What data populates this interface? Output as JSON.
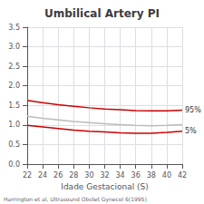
{
  "chart_data": {
    "type": "line",
    "title": "Umbilical Artery PI",
    "xlabel": "Idade Gestacional (S)",
    "caption": "Harrington et al, Ultrasound Obstet Gynecol 6(1995)",
    "x": [
      22,
      24,
      26,
      28,
      30,
      32,
      34,
      36,
      38,
      40,
      42
    ],
    "series": [
      {
        "color": "#cc0000",
        "values": [
          1.63,
          1.57,
          1.52,
          1.48,
          1.44,
          1.41,
          1.39,
          1.37,
          1.36,
          1.36,
          1.38
        ],
        "annotation": "95%"
      },
      {
        "color": "#bbbbbb",
        "values": [
          1.22,
          1.17,
          1.13,
          1.09,
          1.06,
          1.03,
          1.01,
          0.99,
          0.98,
          0.99,
          1.01
        ]
      },
      {
        "color": "#cc0000",
        "values": [
          0.99,
          0.95,
          0.91,
          0.87,
          0.84,
          0.82,
          0.8,
          0.79,
          0.79,
          0.81,
          0.84
        ],
        "annotation": "5%"
      }
    ],
    "xlim": [
      22,
      42
    ],
    "ylim": [
      0.0,
      3.5
    ],
    "xticks": [
      22,
      24,
      26,
      28,
      30,
      32,
      34,
      36,
      38,
      40,
      42
    ],
    "yticks": [
      {
        "value": 0,
        "label": "0.0"
      },
      0.5,
      {
        "value": 1,
        "label": "1.0"
      },
      1.5,
      {
        "value": 2,
        "label": "2.0"
      },
      2.5,
      {
        "value": 3,
        "label": "3.0"
      },
      3.5
    ],
    "grid": true
  }
}
